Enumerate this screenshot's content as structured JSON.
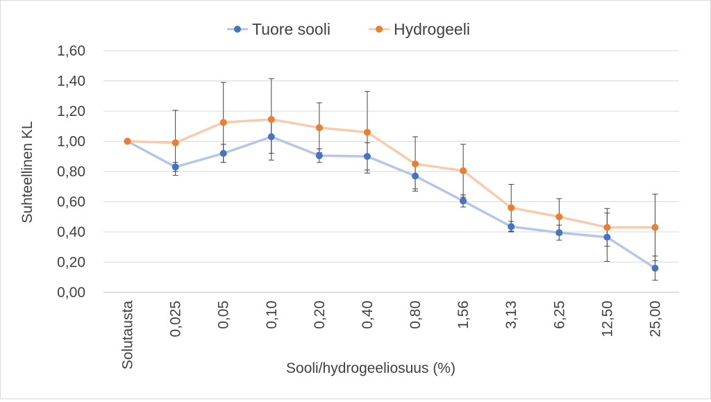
{
  "chart_data": {
    "type": "line",
    "title": "",
    "xlabel": "Sooli/hydrogeeliosuus (%)",
    "ylabel": "Suhteellinen KL",
    "ylim": [
      0,
      1.6
    ],
    "y_ticks": [
      "0,00",
      "0,20",
      "0,40",
      "0,60",
      "0,80",
      "1,00",
      "1,20",
      "1,40",
      "1,60"
    ],
    "grid": true,
    "legend_position": "top",
    "categories": [
      "Solutausta",
      "0,025",
      "0,05",
      "0,10",
      "0,20",
      "0,40",
      "0,80",
      "1,56",
      "3,13",
      "6,25",
      "12,50",
      "25,00"
    ],
    "series": [
      {
        "name": "Tuore sooli",
        "line_color": "#b4c7e7",
        "marker_color": "#4472c4",
        "values": [
          1.0,
          0.83,
          0.92,
          1.03,
          0.905,
          0.9,
          0.77,
          0.605,
          0.435,
          0.395,
          0.365,
          0.16
        ],
        "error": [
          0,
          0.03,
          0.06,
          0.11,
          0.045,
          0.09,
          0.085,
          0.04,
          0.035,
          0.05,
          0.16,
          0.08
        ]
      },
      {
        "name": "Hydrogeeli",
        "line_color": "#f8cbad",
        "marker_color": "#ed7d31",
        "values": [
          1.0,
          0.99,
          1.125,
          1.145,
          1.09,
          1.06,
          0.85,
          0.805,
          0.56,
          0.5,
          0.43,
          0.43
        ],
        "error": [
          0,
          0.215,
          0.265,
          0.27,
          0.165,
          0.27,
          0.18,
          0.175,
          0.155,
          0.12,
          0.125,
          0.22
        ]
      }
    ]
  }
}
